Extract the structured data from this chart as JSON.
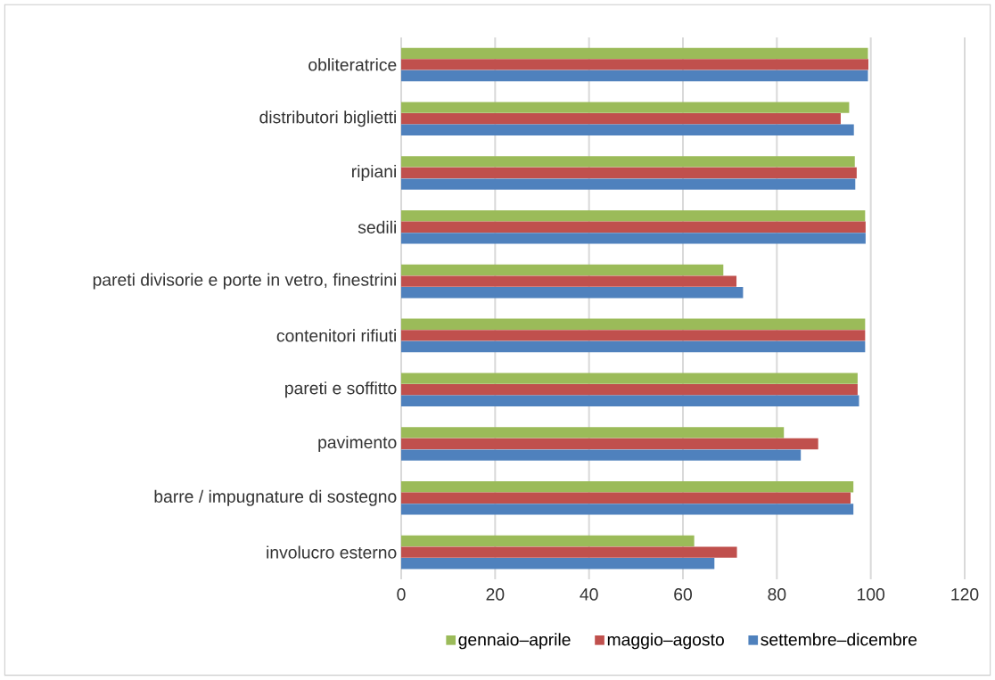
{
  "chart_data": {
    "type": "bar",
    "orientation": "horizontal",
    "categories": [
      "obliteratrice",
      "distributori biglietti",
      "ripiani",
      "sedili",
      "pareti divisorie e porte in vetro, finestrini",
      "contenitori rifiuti",
      "pareti e soffitto",
      "pavimento",
      "barre / impugnature di sostegno",
      "involucro esterno"
    ],
    "series": [
      {
        "name": "gennaio–aprile",
        "color": "#9bbb59",
        "values": [
          99.4,
          95.4,
          96.6,
          98.8,
          68.6,
          98.8,
          97.2,
          81.5,
          96.3,
          62.4
        ]
      },
      {
        "name": "maggio–agosto",
        "color": "#c0504d",
        "values": [
          99.5,
          93.6,
          97.0,
          98.9,
          71.4,
          98.8,
          97.2,
          88.8,
          95.7,
          71.5
        ]
      },
      {
        "name": "settembre–dicembre",
        "color": "#4f81bd",
        "values": [
          99.4,
          96.4,
          96.7,
          98.9,
          72.8,
          98.8,
          97.5,
          85.1,
          96.3,
          66.7
        ]
      }
    ],
    "xlim": [
      0,
      120
    ],
    "xticks": [
      0,
      20,
      40,
      60,
      80,
      100,
      120
    ],
    "grid": "x",
    "legend": "bottom"
  }
}
